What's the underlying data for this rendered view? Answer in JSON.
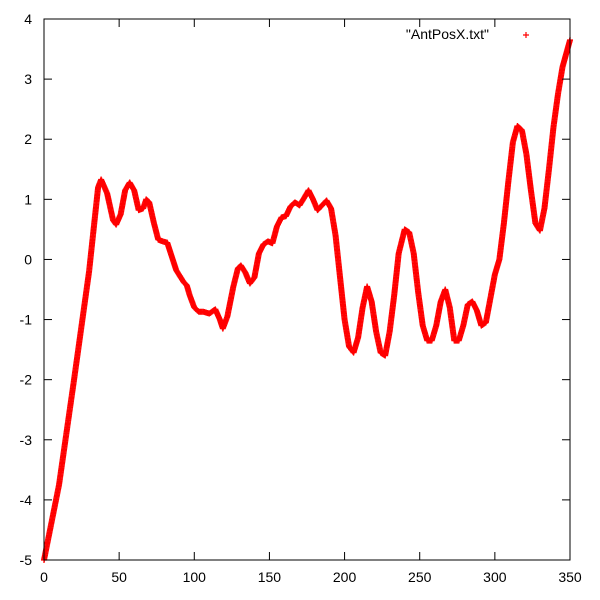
{
  "chart_data": {
    "type": "scatter",
    "title": "",
    "xlabel": "",
    "ylabel": "",
    "xlim": [
      0,
      350
    ],
    "ylim": [
      -5,
      4
    ],
    "xticks": [
      0,
      50,
      100,
      150,
      200,
      250,
      300,
      350
    ],
    "yticks": [
      -5,
      -4,
      -3,
      -2,
      -1,
      0,
      1,
      2,
      3,
      4
    ],
    "grid": false,
    "legend_position": "top-right",
    "series": [
      {
        "name": "\"AntPosX.txt\"",
        "marker": "+",
        "color": "#ff0000",
        "points": [
          [
            0,
            -5.0
          ],
          [
            10,
            -3.75
          ],
          [
            20,
            -2.0
          ],
          [
            30,
            -0.2
          ],
          [
            36,
            1.2
          ],
          [
            38,
            1.33
          ],
          [
            42,
            1.1
          ],
          [
            46,
            0.65
          ],
          [
            48,
            0.58
          ],
          [
            51,
            0.75
          ],
          [
            54,
            1.15
          ],
          [
            57,
            1.28
          ],
          [
            60,
            1.15
          ],
          [
            63,
            0.82
          ],
          [
            66,
            0.85
          ],
          [
            68,
            1.0
          ],
          [
            70,
            0.95
          ],
          [
            73,
            0.62
          ],
          [
            76,
            0.33
          ],
          [
            79,
            0.3
          ],
          [
            82,
            0.28
          ],
          [
            85,
            0.05
          ],
          [
            88,
            -0.18
          ],
          [
            91,
            -0.3
          ],
          [
            93,
            -0.38
          ],
          [
            95,
            -0.43
          ],
          [
            97,
            -0.6
          ],
          [
            100,
            -0.8
          ],
          [
            103,
            -0.87
          ],
          [
            106,
            -0.87
          ],
          [
            110,
            -0.9
          ],
          [
            114,
            -0.83
          ],
          [
            117,
            -1.0
          ],
          [
            119,
            -1.15
          ],
          [
            122,
            -0.95
          ],
          [
            126,
            -0.45
          ],
          [
            129,
            -0.15
          ],
          [
            131,
            -0.1
          ],
          [
            134,
            -0.22
          ],
          [
            137,
            -0.4
          ],
          [
            140,
            -0.3
          ],
          [
            143,
            0.1
          ],
          [
            146,
            0.25
          ],
          [
            149,
            0.3
          ],
          [
            152,
            0.27
          ],
          [
            155,
            0.55
          ],
          [
            158,
            0.7
          ],
          [
            161,
            0.72
          ],
          [
            164,
            0.88
          ],
          [
            167,
            0.95
          ],
          [
            170,
            0.9
          ],
          [
            173,
            1.02
          ],
          [
            176,
            1.15
          ],
          [
            179,
            1.0
          ],
          [
            182,
            0.82
          ],
          [
            185,
            0.9
          ],
          [
            188,
            0.98
          ],
          [
            191,
            0.85
          ],
          [
            194,
            0.4
          ],
          [
            197,
            -0.3
          ],
          [
            200,
            -1.0
          ],
          [
            203,
            -1.45
          ],
          [
            206,
            -1.55
          ],
          [
            209,
            -1.3
          ],
          [
            212,
            -0.8
          ],
          [
            215,
            -0.45
          ],
          [
            218,
            -0.7
          ],
          [
            221,
            -1.2
          ],
          [
            224,
            -1.55
          ],
          [
            227,
            -1.6
          ],
          [
            230,
            -1.2
          ],
          [
            233,
            -0.6
          ],
          [
            236,
            0.1
          ],
          [
            240,
            0.5
          ],
          [
            243,
            0.45
          ],
          [
            246,
            0.1
          ],
          [
            249,
            -0.55
          ],
          [
            252,
            -1.1
          ],
          [
            255,
            -1.35
          ],
          [
            258,
            -1.35
          ],
          [
            261,
            -1.1
          ],
          [
            264,
            -0.7
          ],
          [
            267,
            -0.5
          ],
          [
            270,
            -0.8
          ],
          [
            273,
            -1.35
          ],
          [
            276,
            -1.35
          ],
          [
            279,
            -1.1
          ],
          [
            282,
            -0.75
          ],
          [
            285,
            -0.7
          ],
          [
            288,
            -0.85
          ],
          [
            291,
            -1.1
          ],
          [
            294,
            -1.05
          ],
          [
            297,
            -0.65
          ],
          [
            300,
            -0.25
          ],
          [
            303,
            0.0
          ],
          [
            306,
            0.6
          ],
          [
            309,
            1.3
          ],
          [
            312,
            1.95
          ],
          [
            315,
            2.22
          ],
          [
            318,
            2.15
          ],
          [
            321,
            1.75
          ],
          [
            324,
            1.15
          ],
          [
            327,
            0.6
          ],
          [
            330,
            0.48
          ],
          [
            333,
            0.85
          ],
          [
            336,
            1.5
          ],
          [
            339,
            2.2
          ],
          [
            342,
            2.75
          ],
          [
            345,
            3.2
          ],
          [
            350,
            3.65
          ]
        ]
      }
    ]
  }
}
